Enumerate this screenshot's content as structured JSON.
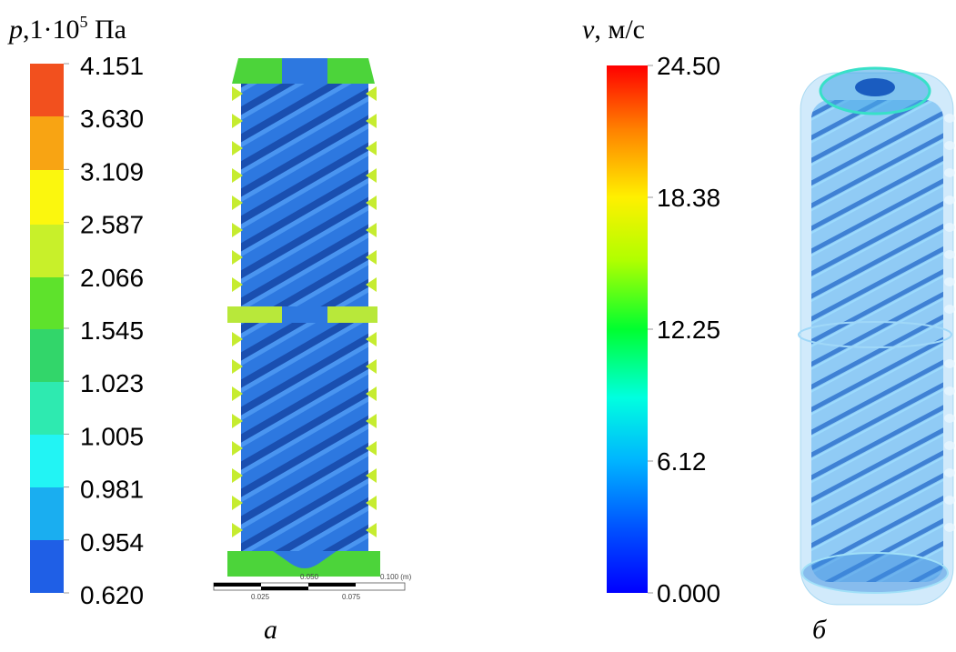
{
  "pressure_legend": {
    "title": {
      "symbol": "p",
      "unit_base": ",1·10",
      "exponent": "5",
      "unit": " Па"
    },
    "ticks": [
      "4.151",
      "3.630",
      "3.109",
      "2.587",
      "2.066",
      "1.545",
      "1.023",
      "1.005",
      "0.981",
      "0.954",
      "0.620"
    ]
  },
  "scale_bar": {
    "top": [
      "0.050",
      "0.100 (m)"
    ],
    "bottom": [
      "0.025",
      "0.075"
    ]
  },
  "velocity_legend": {
    "title": {
      "symbol": "v",
      "unit": ", м/с"
    },
    "ticks": [
      "24.50",
      "18.38",
      "12.25",
      "6.12",
      "0.000"
    ]
  },
  "captions": [
    "а",
    "б"
  ]
}
